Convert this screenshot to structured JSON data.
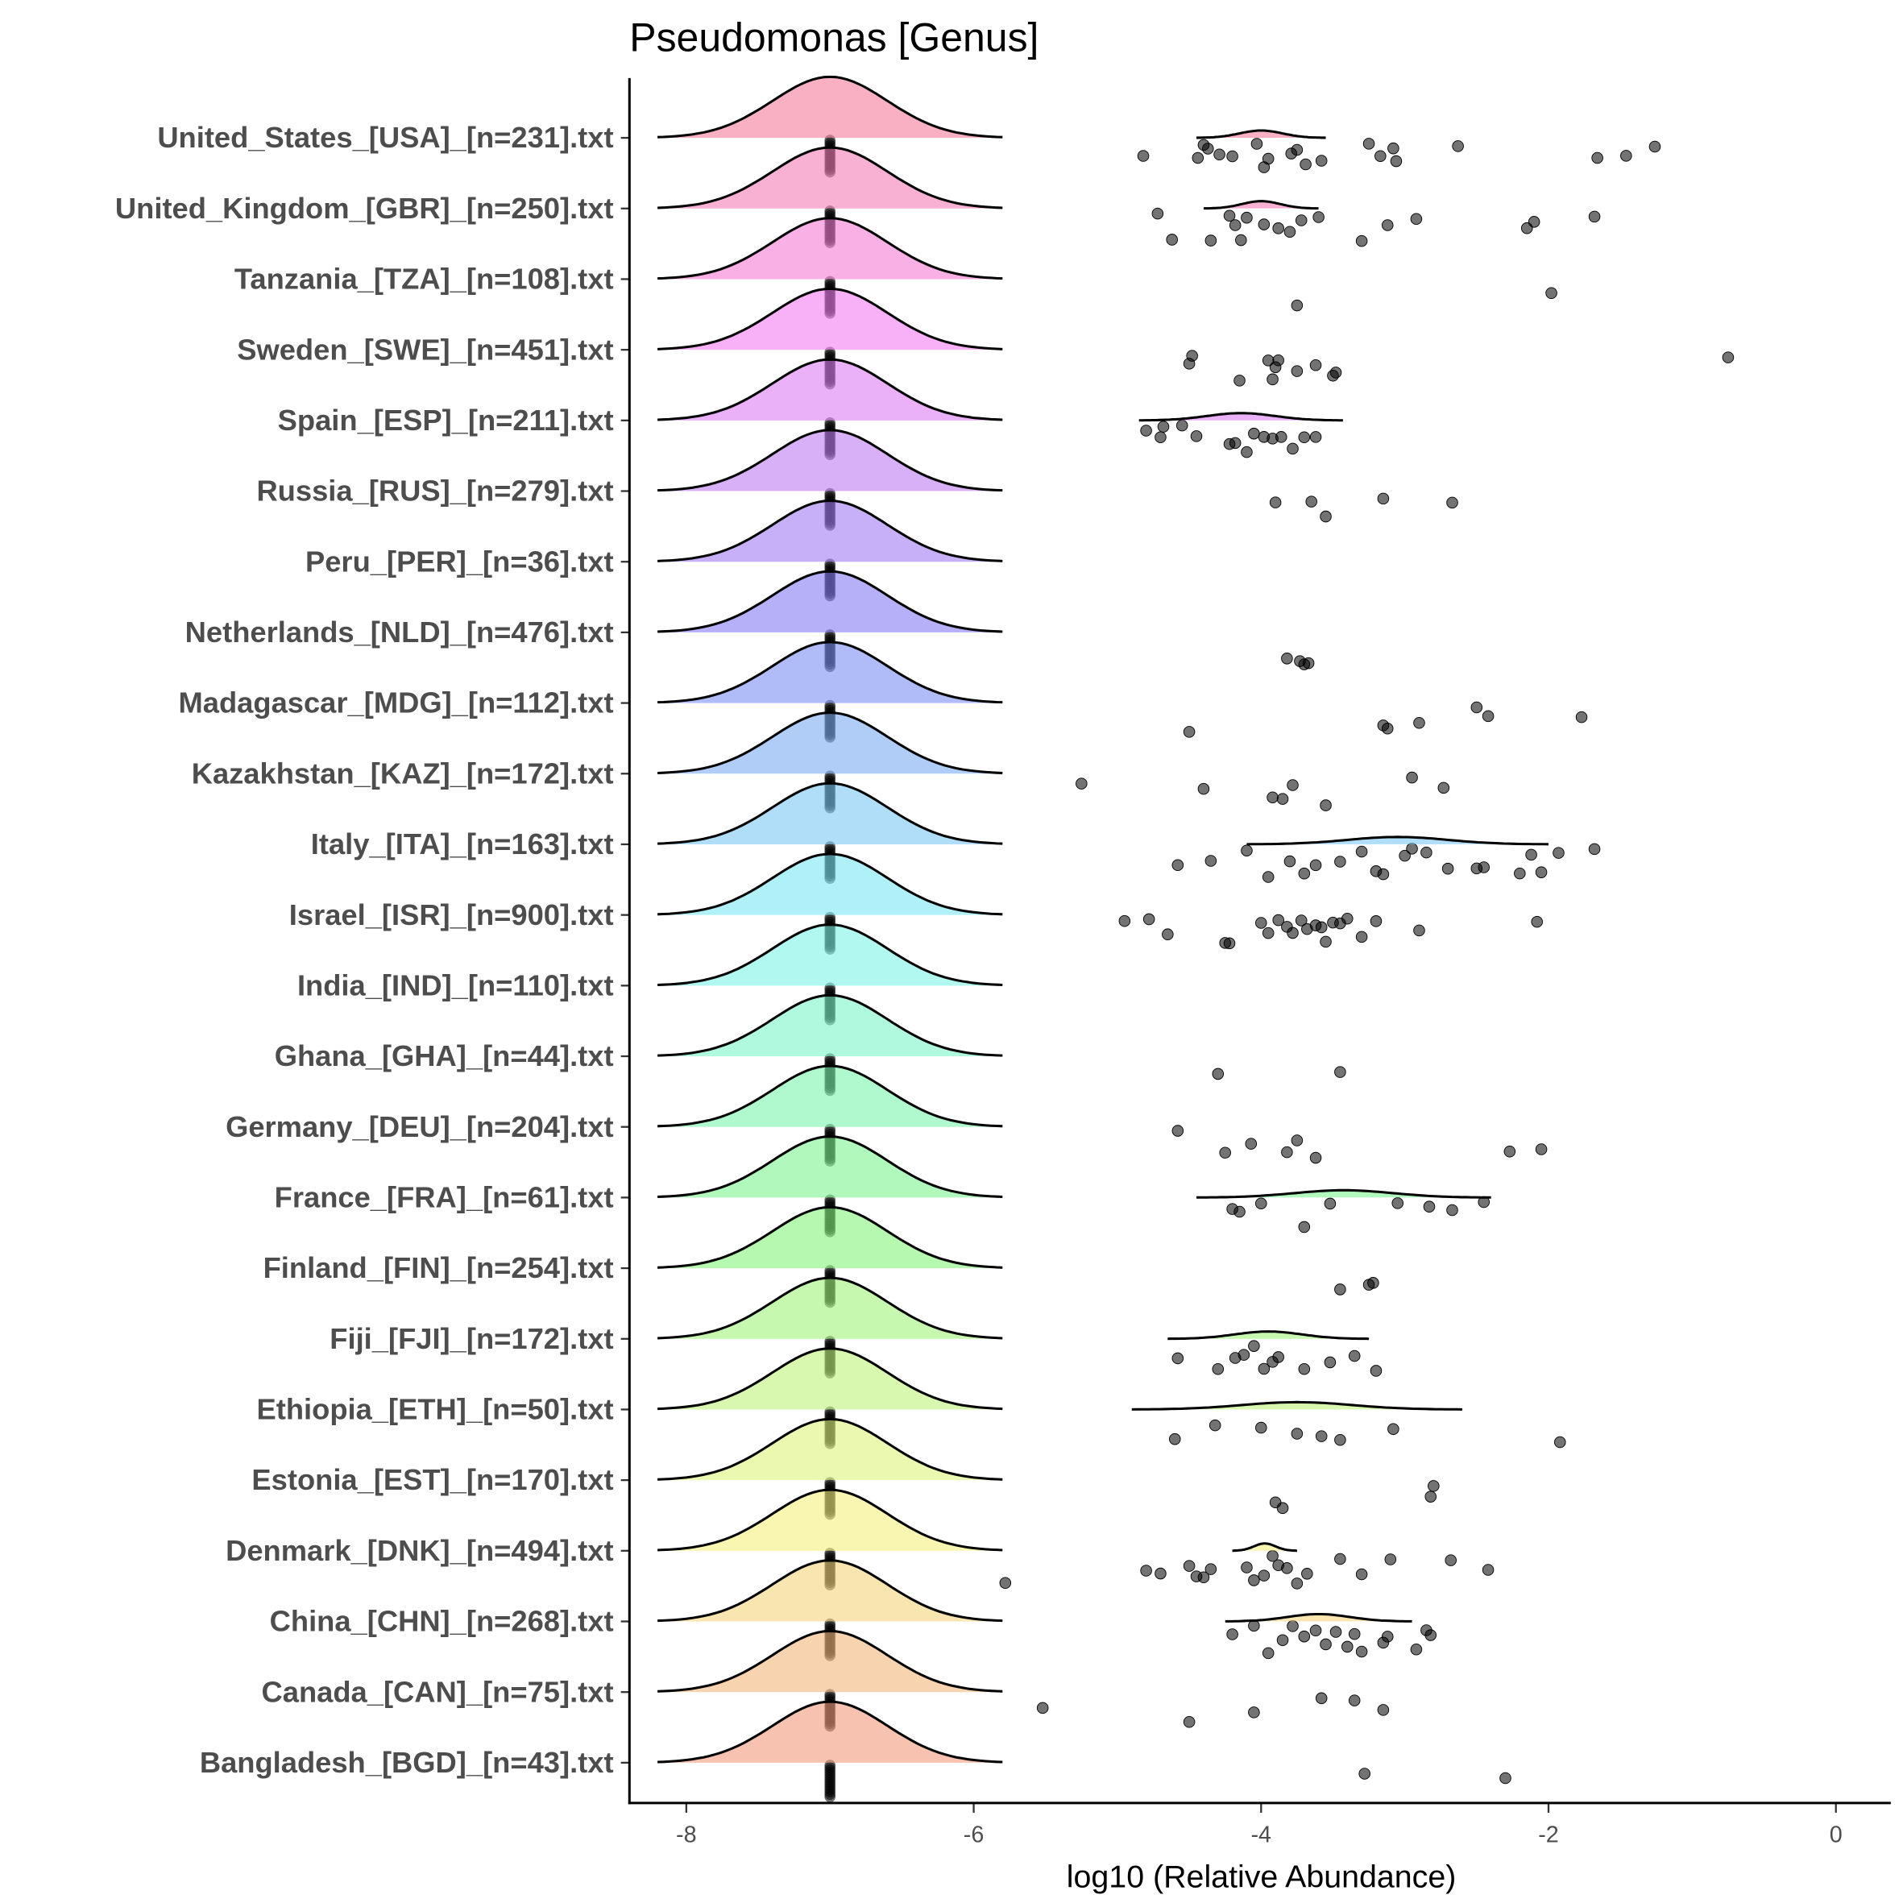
{
  "chart_data": {
    "type": "ridgeline",
    "title": "Pseudomonas [Genus]",
    "xlabel": "log10 (Relative Abundance)",
    "ylabel": "",
    "xlim": [
      -8.4,
      0.4
    ],
    "xticks": [
      -8,
      -6,
      -4,
      -2,
      0
    ],
    "xtick_labels": [
      "-8",
      "-6",
      "-4",
      "-2",
      "0"
    ],
    "zero_value_position": -7,
    "categories": [
      {
        "label": "United_States_[USA]_[n=231].txt",
        "density_range": [
          -4.45,
          -3.55
        ],
        "points": [
          -4.82,
          -4.44,
          -4.4,
          -4.37,
          -4.29,
          -4.2,
          -4.03,
          -3.98,
          -3.95,
          -3.79,
          -3.75,
          -3.69,
          -3.58,
          -3.25,
          -3.17,
          -3.08,
          -3.06,
          -2.63,
          -1.66,
          -1.46,
          -1.26
        ]
      },
      {
        "label": "United_Kingdom_[GBR]_[n=250].txt",
        "density_range": [
          -4.4,
          -3.6
        ],
        "points": [
          -4.72,
          -4.62,
          -4.35,
          -4.22,
          -4.18,
          -4.14,
          -4.1,
          -3.98,
          -3.88,
          -3.8,
          -3.72,
          -3.6,
          -3.3,
          -3.12,
          -2.92,
          -2.15,
          -2.1,
          -1.68
        ]
      },
      {
        "label": "Tanzania_[TZA]_[n=108].txt",
        "density_range": null,
        "points": [
          -3.75,
          -1.98
        ]
      },
      {
        "label": "Sweden_[SWE]_[n=451].txt",
        "density_range": null,
        "points": [
          -4.5,
          -4.48,
          -4.15,
          -3.95,
          -3.92,
          -3.9,
          -3.88,
          -3.75,
          -3.62,
          -3.5,
          -3.48,
          -0.75
        ]
      },
      {
        "label": "Spain_[ESP]_[n=211].txt",
        "density_range": [
          -4.85,
          -3.43
        ],
        "points": [
          -4.8,
          -4.7,
          -4.68,
          -4.55,
          -4.45,
          -4.22,
          -4.18,
          -4.1,
          -4.05,
          -3.98,
          -3.92,
          -3.86,
          -3.78,
          -3.7,
          -3.62
        ]
      },
      {
        "label": "Russia_[RUS]_[n=279].txt",
        "density_range": null,
        "points": [
          -3.9,
          -3.65,
          -3.55,
          -3.15,
          -2.67
        ]
      },
      {
        "label": "Peru_[PER]_[n=36].txt",
        "density_range": null,
        "points": []
      },
      {
        "label": "Netherlands_[NLD]_[n=476].txt",
        "density_range": null,
        "points": [
          -3.82,
          -3.73,
          -3.7,
          -3.67
        ]
      },
      {
        "label": "Madagascar_[MDG]_[n=112].txt",
        "density_range": null,
        "points": [
          -4.5,
          -3.12,
          -3.15,
          -2.9,
          -2.5,
          -2.42,
          -1.77
        ]
      },
      {
        "label": "Kazakhstan_[KAZ]_[n=172].txt",
        "density_range": null,
        "points": [
          -5.25,
          -4.4,
          -3.92,
          -3.85,
          -3.78,
          -3.55,
          -2.95,
          -2.73
        ]
      },
      {
        "label": "Italy_[ITA]_[n=163].txt",
        "density_range": [
          -4.1,
          -2.0
        ],
        "points": [
          -4.58,
          -4.35,
          -4.1,
          -3.95,
          -3.8,
          -3.7,
          -3.62,
          -3.45,
          -3.3,
          -3.2,
          -3.15,
          -3.0,
          -2.95,
          -2.85,
          -2.7,
          -2.5,
          -2.45,
          -2.2,
          -2.12,
          -2.05,
          -1.93,
          -1.68
        ]
      },
      {
        "label": "Israel_[ISR]_[n=900].txt",
        "density_range": null,
        "points": [
          -4.95,
          -4.78,
          -4.65,
          -4.25,
          -4.22,
          -4.0,
          -3.95,
          -3.88,
          -3.82,
          -3.78,
          -3.72,
          -3.68,
          -3.62,
          -3.58,
          -3.55,
          -3.5,
          -3.45,
          -3.4,
          -3.3,
          -3.2,
          -2.9,
          -2.08
        ]
      },
      {
        "label": "India_[IND]_[n=110].txt",
        "density_range": null,
        "points": []
      },
      {
        "label": "Ghana_[GHA]_[n=44].txt",
        "density_range": null,
        "points": [
          -4.3,
          -3.45
        ]
      },
      {
        "label": "Germany_[DEU]_[n=204].txt",
        "density_range": null,
        "points": [
          -4.58,
          -4.25,
          -4.07,
          -3.82,
          -3.75,
          -3.62,
          -2.27,
          -2.05
        ]
      },
      {
        "label": "France_[FRA]_[n=61].txt",
        "density_range": [
          -4.45,
          -2.4
        ],
        "points": [
          -4.2,
          -4.15,
          -4.0,
          -3.7,
          -3.52,
          -3.05,
          -2.83,
          -2.67,
          -2.45
        ]
      },
      {
        "label": "Finland_[FIN]_[n=254].txt",
        "density_range": null,
        "points": [
          -3.45,
          -3.25,
          -3.22
        ]
      },
      {
        "label": "Fiji_[FJI]_[n=172].txt",
        "density_range": [
          -4.65,
          -3.25
        ],
        "points": [
          -4.58,
          -4.3,
          -4.18,
          -4.12,
          -4.05,
          -3.98,
          -3.92,
          -3.88,
          -3.7,
          -3.52,
          -3.35,
          -3.2
        ]
      },
      {
        "label": "Ethiopia_[ETH]_[n=50].txt",
        "density_range": [
          -4.9,
          -2.6
        ],
        "points": [
          -4.6,
          -4.32,
          -4.0,
          -3.75,
          -3.58,
          -3.45,
          -3.08,
          -1.92
        ]
      },
      {
        "label": "Estonia_[EST]_[n=170].txt",
        "density_range": null,
        "points": [
          -3.9,
          -3.85,
          -2.82,
          -2.8
        ]
      },
      {
        "label": "Denmark_[DNK]_[n=494].txt",
        "density_range": [
          -4.2,
          -3.75
        ],
        "points": [
          -5.78,
          -4.8,
          -4.7,
          -4.5,
          -4.45,
          -4.4,
          -4.35,
          -4.1,
          -4.05,
          -3.98,
          -3.92,
          -3.88,
          -3.82,
          -3.75,
          -3.68,
          -3.45,
          -3.3,
          -3.1,
          -2.68,
          -2.42
        ]
      },
      {
        "label": "China_[CHN]_[n=268].txt",
        "density_range": [
          -4.25,
          -2.95
        ],
        "points": [
          -4.2,
          -4.05,
          -3.95,
          -3.85,
          -3.78,
          -3.7,
          -3.62,
          -3.55,
          -3.48,
          -3.4,
          -3.35,
          -3.3,
          -3.15,
          -3.12,
          -2.92,
          -2.85,
          -2.82
        ]
      },
      {
        "label": "Canada_[CAN]_[n=75].txt",
        "density_range": null,
        "points": [
          -5.52,
          -4.5,
          -4.05,
          -3.58,
          -3.35,
          -3.15
        ]
      },
      {
        "label": "Bangladesh_[BGD]_[n=43].txt",
        "density_range": null,
        "points": [
          -3.28,
          -2.3
        ]
      }
    ]
  }
}
